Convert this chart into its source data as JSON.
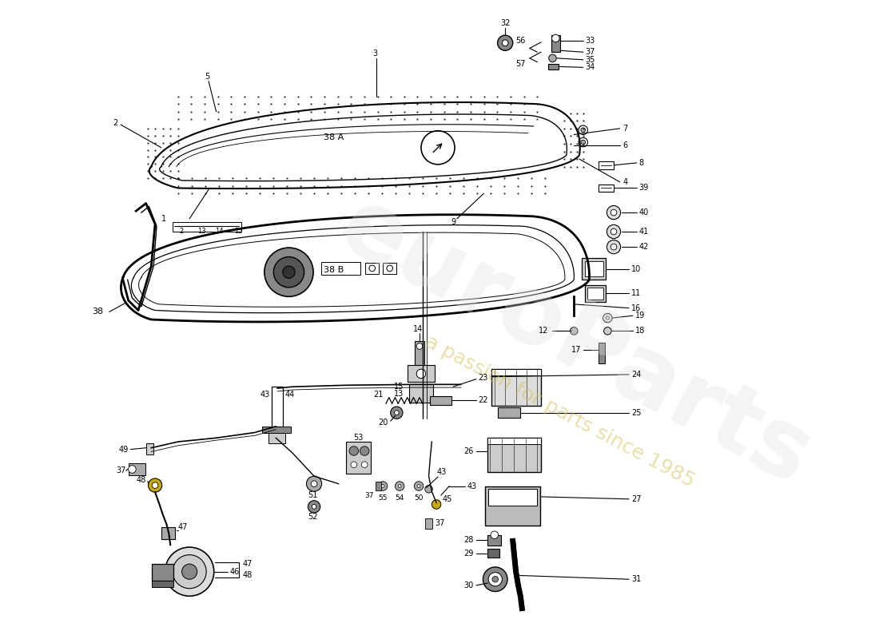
{
  "bg_color": "#ffffff",
  "lc": "#000000",
  "watermark1": "euroParts",
  "watermark2": "a passion for parts since 1985",
  "fig_width": 11.0,
  "fig_height": 8.0,
  "dpi": 100
}
